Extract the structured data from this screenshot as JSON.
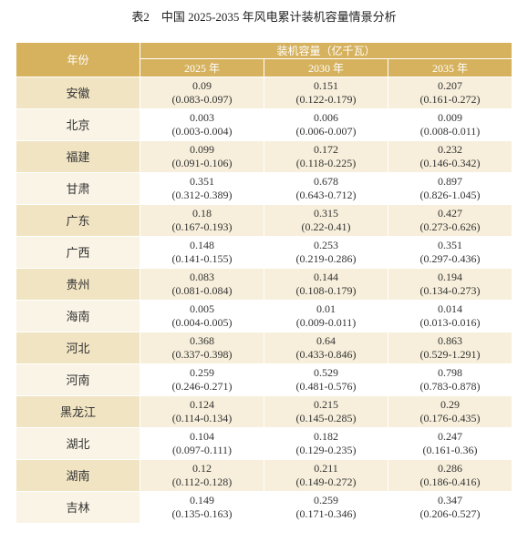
{
  "title": "表2　中国 2025-2035 年风电累计装机容量情景分析",
  "table": {
    "header": {
      "row_label": "年份",
      "group": "装机容量（亿千瓦）",
      "years": [
        "2025 年",
        "2030 年",
        "2035 年"
      ]
    },
    "rows": [
      {
        "province": "安徽",
        "cells": [
          [
            "0.09",
            "(0.083-0.097)"
          ],
          [
            "0.151",
            "(0.122-0.179)"
          ],
          [
            "0.207",
            "(0.161-0.272)"
          ]
        ]
      },
      {
        "province": "北京",
        "cells": [
          [
            "0.003",
            "(0.003-0.004)"
          ],
          [
            "0.006",
            "(0.006-0.007)"
          ],
          [
            "0.009",
            "(0.008-0.011)"
          ]
        ]
      },
      {
        "province": "福建",
        "cells": [
          [
            "0.099",
            "(0.091-0.106)"
          ],
          [
            "0.172",
            "(0.118-0.225)"
          ],
          [
            "0.232",
            "(0.146-0.342)"
          ]
        ]
      },
      {
        "province": "甘肃",
        "cells": [
          [
            "0.351",
            "(0.312-0.389)"
          ],
          [
            "0.678",
            "(0.643-0.712)"
          ],
          [
            "0.897",
            "(0.826-1.045)"
          ]
        ]
      },
      {
        "province": "广东",
        "cells": [
          [
            "0.18",
            "(0.167-0.193)"
          ],
          [
            "0.315",
            "(0.22-0.41)"
          ],
          [
            "0.427",
            "(0.273-0.626)"
          ]
        ]
      },
      {
        "province": "广西",
        "cells": [
          [
            "0.148",
            "(0.141-0.155)"
          ],
          [
            "0.253",
            "(0.219-0.286)"
          ],
          [
            "0.351",
            "(0.297-0.436)"
          ]
        ]
      },
      {
        "province": "贵州",
        "cells": [
          [
            "0.083",
            "(0.081-0.084)"
          ],
          [
            "0.144",
            "(0.108-0.179)"
          ],
          [
            "0.194",
            "(0.134-0.273)"
          ]
        ]
      },
      {
        "province": "海南",
        "cells": [
          [
            "0.005",
            "(0.004-0.005)"
          ],
          [
            "0.01",
            "(0.009-0.011)"
          ],
          [
            "0.014",
            "(0.013-0.016)"
          ]
        ]
      },
      {
        "province": "河北",
        "cells": [
          [
            "0.368",
            "(0.337-0.398)"
          ],
          [
            "0.64",
            "(0.433-0.846)"
          ],
          [
            "0.863",
            "(0.529-1.291)"
          ]
        ]
      },
      {
        "province": "河南",
        "cells": [
          [
            "0.259",
            "(0.246-0.271)"
          ],
          [
            "0.529",
            "(0.481-0.576)"
          ],
          [
            "0.798",
            "(0.783-0.878)"
          ]
        ]
      },
      {
        "province": "黑龙江",
        "cells": [
          [
            "0.124",
            "(0.114-0.134)"
          ],
          [
            "0.215",
            "(0.145-0.285)"
          ],
          [
            "0.29",
            "(0.176-0.435)"
          ]
        ]
      },
      {
        "province": "湖北",
        "cells": [
          [
            "0.104",
            "(0.097-0.111)"
          ],
          [
            "0.182",
            "(0.129-0.235)"
          ],
          [
            "0.247",
            "(0.161-0.36)"
          ]
        ]
      },
      {
        "province": "湖南",
        "cells": [
          [
            "0.12",
            "(0.112-0.128)"
          ],
          [
            "0.211",
            "(0.149-0.272)"
          ],
          [
            "0.286",
            "(0.186-0.416)"
          ]
        ]
      },
      {
        "province": "吉林",
        "cells": [
          [
            "0.149",
            "(0.135-0.163)"
          ],
          [
            "0.259",
            "(0.171-0.346)"
          ],
          [
            "0.347",
            "(0.206-0.527)"
          ]
        ]
      }
    ]
  }
}
